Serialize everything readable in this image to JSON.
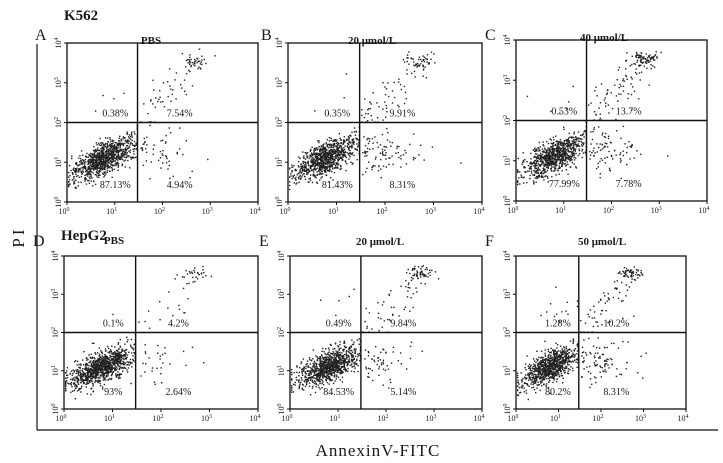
{
  "figure": {
    "x_axis_title": "AnnexinV-FITC",
    "y_axis_title": "PI",
    "cell_lines": [
      {
        "name": "K562",
        "row": 0
      },
      {
        "name": "HepG2",
        "row": 1
      }
    ]
  },
  "chart_data": [
    {
      "type": "scatter",
      "panel": "A",
      "cell_line": "K562",
      "title": "PBS",
      "xlabel": "AnnexinV-FITC",
      "ylabel": "PI",
      "x_ticks": [
        "10",
        "1",
        "2",
        "3",
        "4"
      ],
      "y_ticks": [
        "10",
        "1",
        "2",
        "3",
        "4"
      ],
      "xlim": [
        1,
        10000
      ],
      "ylim": [
        1,
        10000
      ],
      "gate_x": 30,
      "gate_y": 100,
      "quadrants": {
        "upper_left": "0.38%",
        "upper_right": "7.54%",
        "lower_left": "87.13%",
        "lower_right": "4.94%"
      },
      "upper_right_pct": 7.54,
      "lower_right_pct": 4.94,
      "upper_left_pct": 0.38
    },
    {
      "type": "scatter",
      "panel": "B",
      "cell_line": "K562",
      "title": "20 μmol/L",
      "xlabel": "AnnexinV-FITC",
      "ylabel": "PI",
      "x_ticks": [
        "10",
        "1",
        "2",
        "3",
        "4"
      ],
      "y_ticks": [
        "10",
        "1",
        "2",
        "3",
        "4"
      ],
      "xlim": [
        1,
        10000
      ],
      "ylim": [
        1,
        10000
      ],
      "gate_x": 30,
      "gate_y": 100,
      "quadrants": {
        "upper_left": "0.35%",
        "upper_right": "9.91%",
        "lower_left": "81.43%",
        "lower_right": "8.31%"
      },
      "upper_right_pct": 9.91,
      "lower_right_pct": 8.31,
      "upper_left_pct": 0.35
    },
    {
      "type": "scatter",
      "panel": "C",
      "cell_line": "K562",
      "title": "40 μmol/L",
      "xlabel": "AnnexinV-FITC",
      "ylabel": "PI",
      "x_ticks": [
        "10",
        "1",
        "2",
        "3",
        "4"
      ],
      "y_ticks": [
        "10",
        "1",
        "2",
        "3",
        "4"
      ],
      "xlim": [
        1,
        10000
      ],
      "ylim": [
        1,
        10000
      ],
      "gate_x": 30,
      "gate_y": 100,
      "quadrants": {
        "upper_left": "0.53%",
        "upper_right": "13.7%",
        "lower_left": "77.99%",
        "lower_right": "7.78%"
      },
      "upper_right_pct": 13.7,
      "lower_right_pct": 7.78,
      "upper_left_pct": 0.53
    },
    {
      "type": "scatter",
      "panel": "D",
      "cell_line": "HepG2",
      "title": "PBS",
      "xlabel": "AnnexinV-FITC",
      "ylabel": "PI",
      "x_ticks": [
        "10",
        "1",
        "2",
        "3",
        "4"
      ],
      "y_ticks": [
        "10",
        "1",
        "2",
        "3",
        "4"
      ],
      "xlim": [
        1,
        10000
      ],
      "ylim": [
        1,
        10000
      ],
      "gate_x": 30,
      "gate_y": 100,
      "quadrants": {
        "upper_left": "0.1%",
        "upper_right": "4.2%",
        "lower_left": "93%",
        "lower_right": "2.64%"
      },
      "upper_right_pct": 4.2,
      "lower_right_pct": 2.64,
      "upper_left_pct": 0.1
    },
    {
      "type": "scatter",
      "panel": "E",
      "cell_line": "HepG2",
      "title": "20 μmol/L",
      "xlabel": "AnnexinV-FITC",
      "ylabel": "PI",
      "x_ticks": [
        "10",
        "1",
        "2",
        "3",
        "4"
      ],
      "y_ticks": [
        "10",
        "1",
        "2",
        "3",
        "4"
      ],
      "xlim": [
        1,
        10000
      ],
      "ylim": [
        1,
        10000
      ],
      "gate_x": 30,
      "gate_y": 100,
      "quadrants": {
        "upper_left": "0.49%",
        "upper_right": "9.84%",
        "lower_left": "84.53%",
        "lower_right": "5.14%"
      },
      "upper_right_pct": 9.84,
      "lower_right_pct": 5.14,
      "upper_left_pct": 0.49
    },
    {
      "type": "scatter",
      "panel": "F",
      "cell_line": "HepG2",
      "title": "50 μmol/L",
      "xlabel": "AnnexinV-FITC",
      "ylabel": "PI",
      "x_ticks": [
        "10",
        "1",
        "2",
        "3",
        "4"
      ],
      "y_ticks": [
        "10",
        "1",
        "2",
        "3",
        "4"
      ],
      "xlim": [
        1,
        10000
      ],
      "ylim": [
        1,
        10000
      ],
      "gate_x": 30,
      "gate_y": 100,
      "quadrants": {
        "upper_left": "1.28%",
        "upper_right": "10.2%",
        "lower_left": "80.2%",
        "lower_right": "8.31%"
      },
      "upper_right_pct": 10.2,
      "lower_right_pct": 8.31,
      "upper_left_pct": 1.28
    }
  ]
}
